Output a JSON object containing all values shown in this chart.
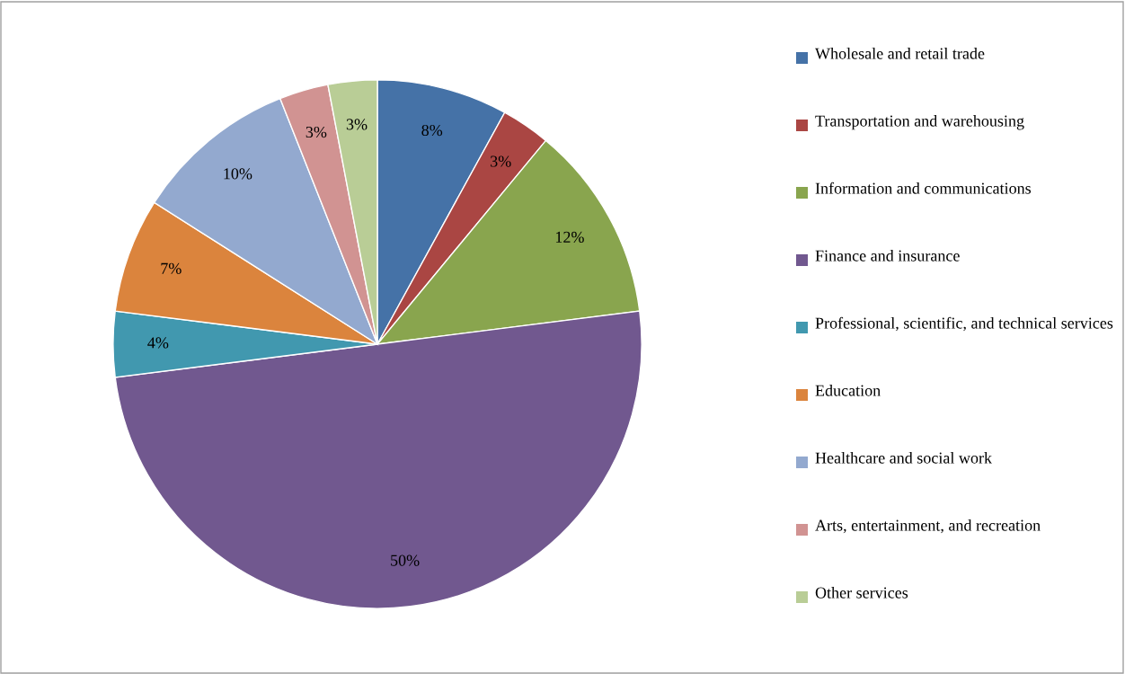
{
  "chart_data": {
    "type": "pie",
    "categories": [
      "Wholesale and retail trade",
      "Transportation and warehousing",
      "Information and communications",
      "Finance and insurance",
      "Professional, scientific, and technical services",
      "Education",
      "Healthcare and social work",
      "Arts, entertainment, and recreation",
      "Other services"
    ],
    "values": [
      8,
      3,
      12,
      50,
      4,
      7,
      10,
      3,
      3
    ],
    "colors": [
      "#4572a7",
      "#aa4643",
      "#89a54e",
      "#71588f",
      "#4198af",
      "#db843d",
      "#93a9cf",
      "#d19392",
      "#b9cd96"
    ],
    "value_labels": [
      "8%",
      "3%",
      "12%",
      "50%",
      "4%",
      "7%",
      "10%",
      "3%",
      "3%"
    ],
    "legend": "right"
  }
}
